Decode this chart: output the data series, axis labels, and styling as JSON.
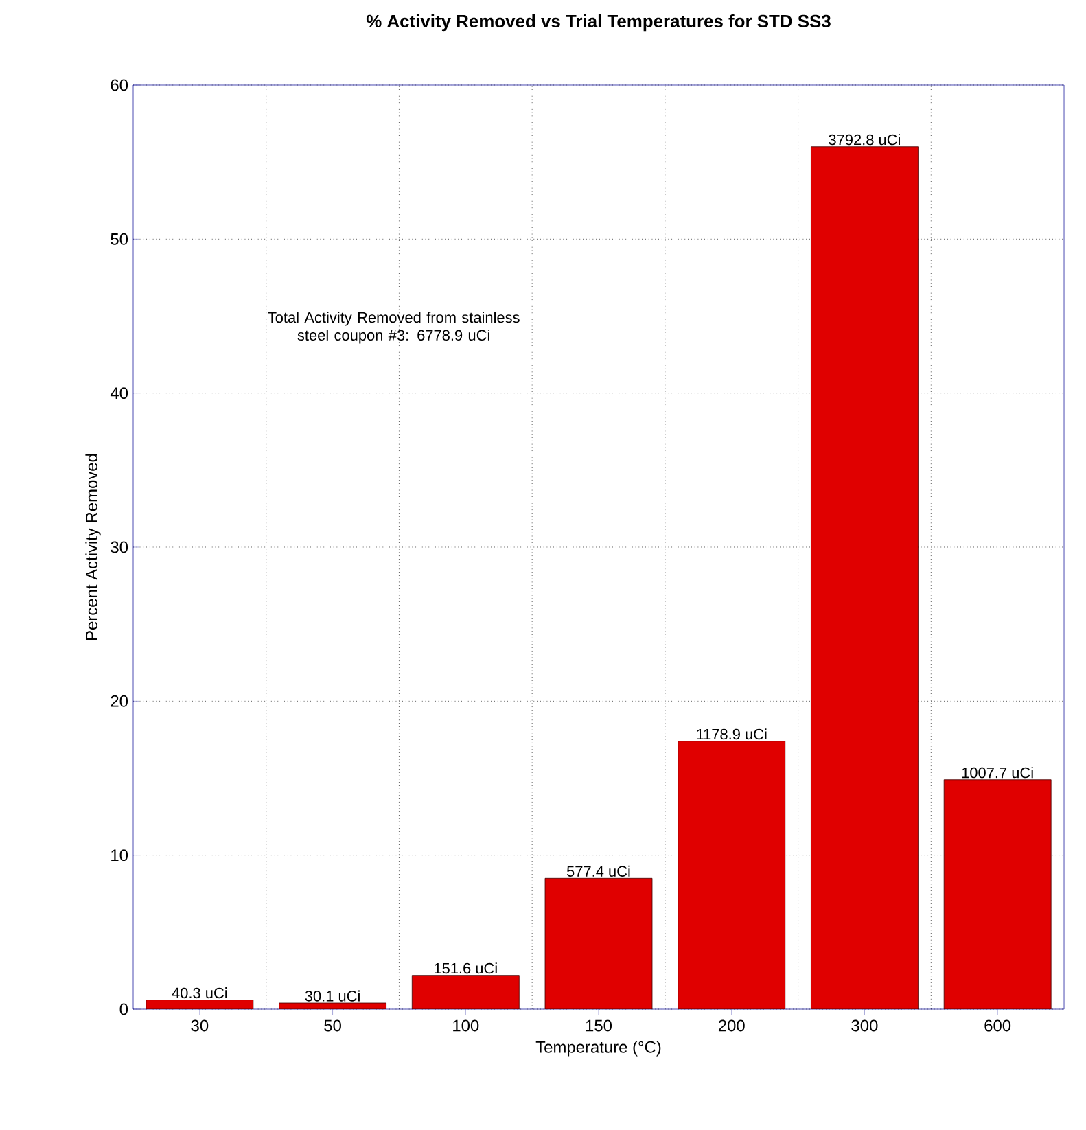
{
  "chart_data": {
    "type": "bar",
    "title": "% Activity Removed vs Trial Temperatures for STD SS3",
    "xlabel": "Temperature (°C)",
    "ylabel": "Percent Activity Removed",
    "categories": [
      "30",
      "50",
      "100",
      "150",
      "200",
      "300",
      "600"
    ],
    "values": [
      0.6,
      0.4,
      2.2,
      8.5,
      17.4,
      56.0,
      14.9
    ],
    "color": "#e00000",
    "ylim": [
      0,
      60
    ],
    "yticks": [
      0,
      10,
      20,
      30,
      40,
      50,
      60
    ],
    "grid": true,
    "annotations": [
      "Total Activity Removed from stainless steel coupon #3: 6778.9 uCi",
      {
        "text": "40.3 uCi",
        "x": "30",
        "y": 0.6
      },
      {
        "text": "30.1 uCi",
        "x": "50",
        "y": 0.4
      },
      {
        "text": "151.6 uCi",
        "x": "100",
        "y": 2.2
      },
      {
        "text": "577.4 uCi",
        "x": "150",
        "y": 8.5
      },
      {
        "text": "1178.9 uCi",
        "x": "200",
        "y": 17.4
      },
      {
        "text": "3792.8 uCi",
        "x": "300",
        "y": 56.0
      },
      {
        "text": "1007.7 uCi",
        "x": "600",
        "y": 14.9
      }
    ]
  }
}
